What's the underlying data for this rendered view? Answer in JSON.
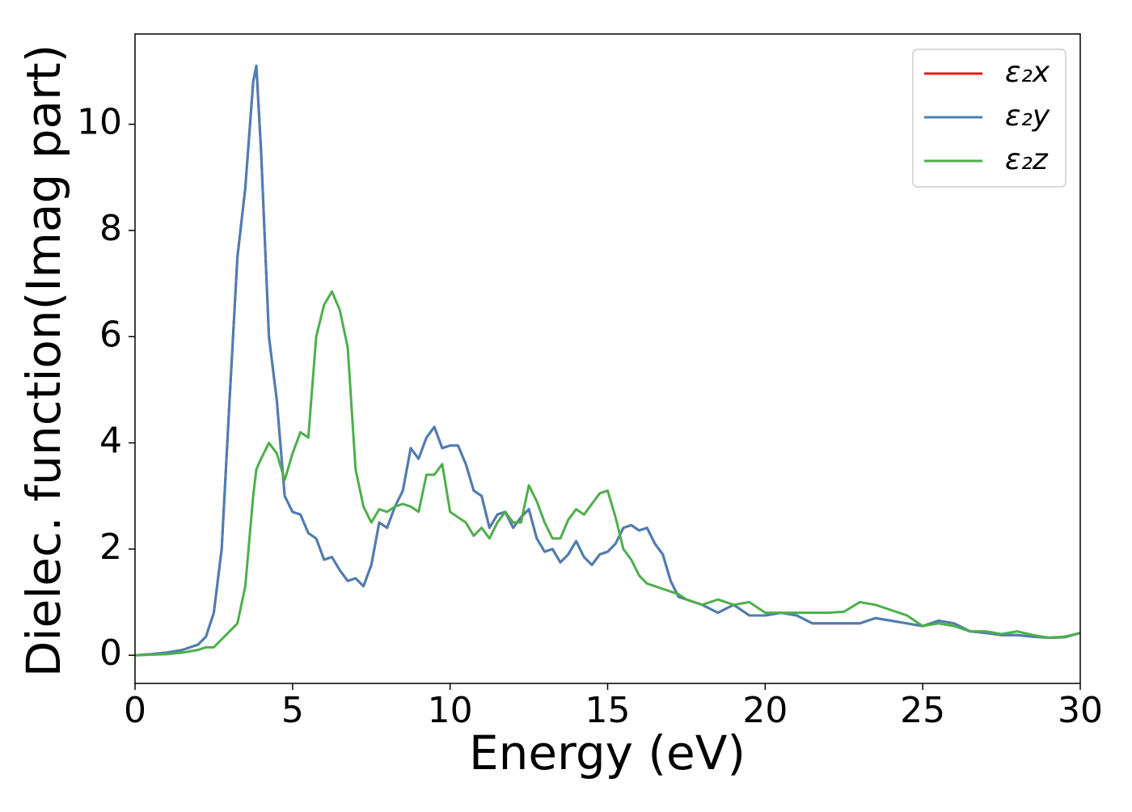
{
  "chart_data": {
    "type": "line",
    "xlabel": "Energy (eV)",
    "ylabel": "Dielec. function(Imag part)",
    "x": [
      0,
      0.5,
      1,
      1.5,
      2,
      2.25,
      2.5,
      2.75,
      3,
      3.25,
      3.5,
      3.75,
      3.85,
      4,
      4.25,
      4.5,
      4.75,
      5,
      5.25,
      5.5,
      5.75,
      6,
      6.25,
      6.5,
      6.75,
      7,
      7.25,
      7.5,
      7.75,
      8,
      8.25,
      8.5,
      8.75,
      9,
      9.25,
      9.5,
      9.75,
      10,
      10.25,
      10.5,
      10.75,
      11,
      11.25,
      11.5,
      11.75,
      12,
      12.25,
      12.5,
      12.75,
      13,
      13.25,
      13.5,
      13.75,
      14,
      14.25,
      14.5,
      14.75,
      15,
      15.25,
      15.5,
      15.75,
      16,
      16.25,
      16.5,
      16.75,
      17,
      17.25,
      17.5,
      18,
      18.5,
      19,
      19.5,
      20,
      20.5,
      21,
      21.5,
      22,
      22.5,
      23,
      23.5,
      24,
      24.5,
      25,
      25.5,
      26,
      26.5,
      27,
      27.5,
      28,
      28.5,
      29,
      29.5,
      30
    ],
    "series": [
      {
        "name": "ε₂x",
        "color": "#e41a1c",
        "values": [
          0,
          0.02,
          0.05,
          0.1,
          0.2,
          0.35,
          0.8,
          2.0,
          4.8,
          7.5,
          8.8,
          10.8,
          11.1,
          9.5,
          6.0,
          4.8,
          3.0,
          2.7,
          2.65,
          2.3,
          2.2,
          1.8,
          1.85,
          1.6,
          1.4,
          1.45,
          1.3,
          1.7,
          2.5,
          2.4,
          2.8,
          3.1,
          3.9,
          3.7,
          4.1,
          4.3,
          3.9,
          3.95,
          3.95,
          3.6,
          3.1,
          3.0,
          2.4,
          2.65,
          2.7,
          2.4,
          2.6,
          2.75,
          2.2,
          1.95,
          2.0,
          1.75,
          1.9,
          2.15,
          1.85,
          1.7,
          1.9,
          1.95,
          2.1,
          2.4,
          2.45,
          2.35,
          2.4,
          2.1,
          1.9,
          1.4,
          1.1,
          1.05,
          0.95,
          0.8,
          0.95,
          0.75,
          0.75,
          0.8,
          0.75,
          0.6,
          0.6,
          0.6,
          0.6,
          0.7,
          0.65,
          0.6,
          0.55,
          0.65,
          0.6,
          0.45,
          0.42,
          0.38,
          0.38,
          0.35,
          0.33,
          0.34,
          0.42
        ]
      },
      {
        "name": "ε₂y",
        "color": "#4a7fb5",
        "values": [
          0,
          0.02,
          0.05,
          0.1,
          0.2,
          0.35,
          0.8,
          2.0,
          4.8,
          7.5,
          8.8,
          10.8,
          11.1,
          9.5,
          6.0,
          4.8,
          3.0,
          2.7,
          2.65,
          2.3,
          2.2,
          1.8,
          1.85,
          1.6,
          1.4,
          1.45,
          1.3,
          1.7,
          2.5,
          2.4,
          2.8,
          3.1,
          3.9,
          3.7,
          4.1,
          4.3,
          3.9,
          3.95,
          3.95,
          3.6,
          3.1,
          3.0,
          2.4,
          2.65,
          2.7,
          2.4,
          2.6,
          2.75,
          2.2,
          1.95,
          2.0,
          1.75,
          1.9,
          2.15,
          1.85,
          1.7,
          1.9,
          1.95,
          2.1,
          2.4,
          2.45,
          2.35,
          2.4,
          2.1,
          1.9,
          1.4,
          1.1,
          1.05,
          0.95,
          0.8,
          0.95,
          0.75,
          0.75,
          0.8,
          0.75,
          0.6,
          0.6,
          0.6,
          0.6,
          0.7,
          0.65,
          0.6,
          0.55,
          0.65,
          0.6,
          0.45,
          0.42,
          0.38,
          0.38,
          0.35,
          0.33,
          0.34,
          0.42
        ]
      },
      {
        "name": "ε₂z",
        "color": "#4daf4a",
        "values": [
          0,
          0.01,
          0.02,
          0.05,
          0.1,
          0.15,
          0.15,
          0.3,
          0.45,
          0.6,
          1.3,
          3.0,
          3.5,
          3.7,
          4.0,
          3.8,
          3.3,
          3.8,
          4.2,
          4.1,
          6.0,
          6.6,
          6.85,
          6.5,
          5.8,
          3.5,
          2.8,
          2.5,
          2.75,
          2.7,
          2.8,
          2.85,
          2.8,
          2.7,
          3.4,
          3.4,
          3.6,
          2.7,
          2.6,
          2.5,
          2.25,
          2.4,
          2.2,
          2.5,
          2.7,
          2.5,
          2.5,
          3.2,
          2.9,
          2.5,
          2.2,
          2.2,
          2.55,
          2.75,
          2.65,
          2.85,
          3.05,
          3.1,
          2.6,
          2.0,
          1.8,
          1.5,
          1.35,
          1.3,
          1.25,
          1.2,
          1.15,
          1.05,
          0.95,
          1.05,
          0.95,
          1.0,
          0.8,
          0.8,
          0.8,
          0.8,
          0.8,
          0.82,
          1.0,
          0.95,
          0.85,
          0.75,
          0.55,
          0.6,
          0.55,
          0.45,
          0.45,
          0.4,
          0.45,
          0.38,
          0.33,
          0.35,
          0.42
        ]
      }
    ],
    "xlim": [
      0,
      30
    ],
    "xticks": [
      0,
      5,
      10,
      15,
      20,
      25,
      30
    ],
    "ylim": [
      -0.53,
      11.7
    ],
    "yticks": [
      0,
      2,
      4,
      6,
      8,
      10
    ],
    "grid": false,
    "legend": "upper right"
  }
}
